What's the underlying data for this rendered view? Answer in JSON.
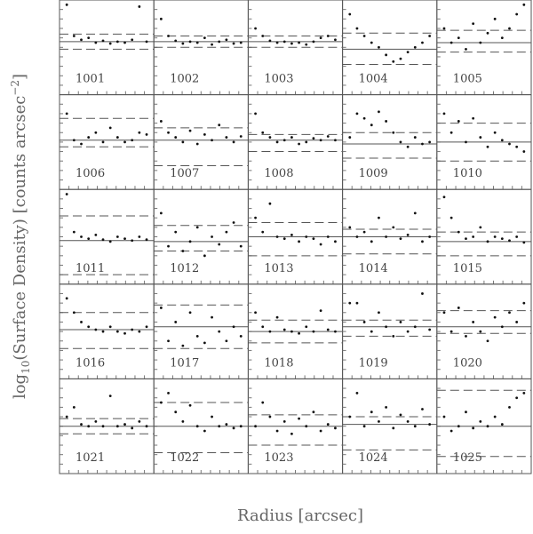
{
  "y_label": {
    "base": "log",
    "sub": "10",
    "text": "(Surface Density) [counts arcsec",
    "sup": "−2",
    "end": "]"
  },
  "x_label": "Radius [arcsec]",
  "chart_data": [
    {
      "type": "scatter",
      "label": "1001",
      "x": [
        1,
        2,
        3,
        4,
        5,
        6,
        7,
        8,
        9,
        10,
        11,
        12
      ],
      "y": [
        0.95,
        0.62,
        0.58,
        0.6,
        0.55,
        0.57,
        0.54,
        0.56,
        0.55,
        0.58,
        0.93,
        0.56
      ],
      "xlim": [
        0,
        13
      ],
      "ylim": [
        0,
        1
      ],
      "level": 0.56,
      "bounds": [
        0.64,
        0.48
      ]
    },
    {
      "type": "scatter",
      "label": "1002",
      "x": [
        1,
        2,
        3,
        4,
        5,
        6,
        7,
        8,
        9,
        10,
        11,
        12
      ],
      "y": [
        0.8,
        0.62,
        0.57,
        0.54,
        0.56,
        0.55,
        0.6,
        0.53,
        0.56,
        0.58,
        0.54,
        0.55
      ],
      "xlim": [
        0,
        13
      ],
      "ylim": [
        0,
        1
      ],
      "level": 0.56,
      "bounds": [
        0.62,
        0.5
      ]
    },
    {
      "type": "scatter",
      "label": "1003",
      "x": [
        1,
        2,
        3,
        4,
        5,
        6,
        7,
        8,
        9,
        10,
        11,
        12
      ],
      "y": [
        0.7,
        0.62,
        0.57,
        0.55,
        0.56,
        0.54,
        0.55,
        0.53,
        0.56,
        0.6,
        0.62,
        0.58
      ],
      "xlim": [
        0,
        13
      ],
      "ylim": [
        0,
        1
      ],
      "level": 0.56,
      "bounds": [
        0.62,
        0.5
      ]
    },
    {
      "type": "scatter",
      "label": "1004",
      "x": [
        1,
        2,
        3,
        4,
        5,
        6,
        7,
        8,
        9,
        10,
        11,
        12
      ],
      "y": [
        0.85,
        0.7,
        0.62,
        0.55,
        0.5,
        0.42,
        0.35,
        0.38,
        0.45,
        0.5,
        0.55,
        0.62
      ],
      "xlim": [
        0,
        13
      ],
      "ylim": [
        0,
        1
      ],
      "level": 0.48,
      "bounds": [
        0.65,
        0.32
      ]
    },
    {
      "type": "scatter",
      "label": "1005",
      "x": [
        1,
        2,
        3,
        4,
        5,
        6,
        7,
        8,
        9,
        10,
        11,
        12
      ],
      "y": [
        0.7,
        0.55,
        0.6,
        0.48,
        0.75,
        0.55,
        0.65,
        0.8,
        0.6,
        0.7,
        0.85,
        0.95
      ],
      "xlim": [
        0,
        13
      ],
      "ylim": [
        0,
        1
      ],
      "level": 0.55,
      "bounds": [
        0.68,
        0.45
      ]
    },
    {
      "type": "scatter",
      "label": "1006",
      "x": [
        1,
        2,
        3,
        4,
        5,
        6,
        7,
        8,
        9,
        10,
        11,
        12
      ],
      "y": [
        0.8,
        0.52,
        0.48,
        0.55,
        0.6,
        0.5,
        0.65,
        0.55,
        0.5,
        0.52,
        0.6,
        0.58
      ],
      "xlim": [
        0,
        13
      ],
      "ylim": [
        0,
        1
      ],
      "level": 0.52,
      "bounds": [
        0.75,
        0.45
      ]
    },
    {
      "type": "scatter",
      "label": "1007",
      "x": [
        1,
        2,
        3,
        4,
        5,
        6,
        7,
        8,
        9,
        10,
        11,
        12
      ],
      "y": [
        0.72,
        0.6,
        0.55,
        0.5,
        0.62,
        0.48,
        0.58,
        0.52,
        0.68,
        0.55,
        0.5,
        0.56
      ],
      "xlim": [
        0,
        13
      ],
      "ylim": [
        0,
        1
      ],
      "level": 0.52,
      "bounds": [
        0.65,
        0.25
      ]
    },
    {
      "type": "scatter",
      "label": "1008",
      "x": [
        1,
        2,
        3,
        4,
        5,
        6,
        7,
        8,
        9,
        10,
        11,
        12
      ],
      "y": [
        0.8,
        0.6,
        0.55,
        0.5,
        0.52,
        0.55,
        0.48,
        0.5,
        0.54,
        0.52,
        0.56,
        0.52
      ],
      "xlim": [
        0,
        13
      ],
      "ylim": [
        0,
        1
      ],
      "level": 0.52,
      "bounds": [
        0.58,
        0.4
      ]
    },
    {
      "type": "scatter",
      "label": "1009",
      "x": [
        1,
        2,
        3,
        4,
        5,
        6,
        7,
        8,
        9,
        10,
        11,
        12
      ],
      "y": [
        0.55,
        0.8,
        0.75,
        0.68,
        0.82,
        0.72,
        0.6,
        0.5,
        0.45,
        0.55,
        0.48,
        0.5
      ],
      "xlim": [
        0,
        13
      ],
      "ylim": [
        0,
        1
      ],
      "level": 0.48,
      "bounds": [
        0.6,
        0.33
      ]
    },
    {
      "type": "scatter",
      "label": "1010",
      "x": [
        1,
        2,
        3,
        4,
        5,
        6,
        7,
        8,
        9,
        10,
        11,
        12
      ],
      "y": [
        0.8,
        0.6,
        0.72,
        0.5,
        0.75,
        0.55,
        0.45,
        0.6,
        0.52,
        0.48,
        0.45,
        0.4
      ],
      "xlim": [
        0,
        13
      ],
      "ylim": [
        0,
        1
      ],
      "level": 0.5,
      "bounds": [
        0.7,
        0.3
      ]
    },
    {
      "type": "scatter",
      "label": "1011",
      "x": [
        1,
        2,
        3,
        4,
        5,
        6,
        7,
        8,
        9,
        10,
        11,
        12
      ],
      "y": [
        0.95,
        0.55,
        0.5,
        0.48,
        0.52,
        0.47,
        0.45,
        0.5,
        0.48,
        0.46,
        0.5,
        0.47
      ],
      "xlim": [
        0,
        13
      ],
      "ylim": [
        0,
        1
      ],
      "level": 0.46,
      "bounds": [
        0.72,
        0.1
      ]
    },
    {
      "type": "scatter",
      "label": "1012",
      "x": [
        1,
        2,
        3,
        4,
        5,
        6,
        7,
        8,
        9,
        10,
        11,
        12
      ],
      "y": [
        0.75,
        0.4,
        0.55,
        0.35,
        0.45,
        0.6,
        0.3,
        0.5,
        0.42,
        0.55,
        0.65,
        0.4
      ],
      "xlim": [
        0,
        13
      ],
      "ylim": [
        0,
        1
      ],
      "level": 0.45,
      "bounds": [
        0.62,
        0.35
      ]
    },
    {
      "type": "scatter",
      "label": "1013",
      "x": [
        1,
        2,
        3,
        4,
        5,
        6,
        7,
        8,
        9,
        10,
        11,
        12
      ],
      "y": [
        0.7,
        0.55,
        0.85,
        0.5,
        0.48,
        0.52,
        0.45,
        0.5,
        0.48,
        0.42,
        0.5,
        0.45
      ],
      "xlim": [
        0,
        13
      ],
      "ylim": [
        0,
        1
      ],
      "level": 0.5,
      "bounds": [
        0.65,
        0.3
      ]
    },
    {
      "type": "scatter",
      "label": "1014",
      "x": [
        1,
        2,
        3,
        4,
        5,
        6,
        7,
        8,
        9,
        10,
        11,
        12
      ],
      "y": [
        0.6,
        0.5,
        0.55,
        0.45,
        0.7,
        0.5,
        0.6,
        0.48,
        0.52,
        0.75,
        0.45,
        0.5
      ],
      "xlim": [
        0,
        13
      ],
      "ylim": [
        0,
        1
      ],
      "level": 0.5,
      "bounds": [
        0.58,
        0.32
      ]
    },
    {
      "type": "scatter",
      "label": "1015",
      "x": [
        1,
        2,
        3,
        4,
        5,
        6,
        7,
        8,
        9,
        10,
        11,
        12
      ],
      "y": [
        0.92,
        0.7,
        0.55,
        0.48,
        0.5,
        0.6,
        0.45,
        0.5,
        0.48,
        0.46,
        0.5,
        0.44
      ],
      "xlim": [
        0,
        13
      ],
      "ylim": [
        0,
        1
      ],
      "level": 0.45,
      "bounds": [
        0.55,
        0.3
      ]
    },
    {
      "type": "scatter",
      "label": "1016",
      "x": [
        1,
        2,
        3,
        4,
        5,
        6,
        7,
        8,
        9,
        10,
        11,
        12
      ],
      "y": [
        0.85,
        0.7,
        0.6,
        0.55,
        0.52,
        0.5,
        0.55,
        0.5,
        0.48,
        0.52,
        0.5,
        0.55
      ],
      "xlim": [
        0,
        13
      ],
      "ylim": [
        0,
        1
      ],
      "level": 0.52,
      "bounds": [
        0.7,
        0.32
      ]
    },
    {
      "type": "scatter",
      "label": "1017",
      "x": [
        1,
        2,
        3,
        4,
        5,
        6,
        7,
        8,
        9,
        10,
        11,
        12
      ],
      "y": [
        0.75,
        0.4,
        0.6,
        0.35,
        0.7,
        0.45,
        0.38,
        0.65,
        0.5,
        0.4,
        0.55,
        0.45
      ],
      "xlim": [
        0,
        13
      ],
      "ylim": [
        0,
        1
      ],
      "level": 0.55,
      "bounds": [
        0.78,
        0.32
      ]
    },
    {
      "type": "scatter",
      "label": "1018",
      "x": [
        1,
        2,
        3,
        4,
        5,
        6,
        7,
        8,
        9,
        10,
        11,
        12
      ],
      "y": [
        0.7,
        0.55,
        0.5,
        0.65,
        0.52,
        0.5,
        0.48,
        0.55,
        0.5,
        0.72,
        0.52,
        0.5
      ],
      "xlim": [
        0,
        13
      ],
      "ylim": [
        0,
        1
      ],
      "level": 0.5,
      "bounds": [
        0.62,
        0.38
      ]
    },
    {
      "type": "scatter",
      "label": "1019",
      "x": [
        1,
        2,
        3,
        4,
        5,
        6,
        7,
        8,
        9,
        10,
        11,
        12
      ],
      "y": [
        0.8,
        0.8,
        0.6,
        0.5,
        0.7,
        0.55,
        0.45,
        0.6,
        0.5,
        0.55,
        0.9,
        0.52
      ],
      "xlim": [
        0,
        13
      ],
      "ylim": [
        0,
        1
      ],
      "level": 0.55,
      "bounds": [
        0.62,
        0.45
      ]
    },
    {
      "type": "scatter",
      "label": "1020",
      "x": [
        1,
        2,
        3,
        4,
        5,
        6,
        7,
        8,
        9,
        10,
        11,
        12
      ],
      "y": [
        0.7,
        0.5,
        0.75,
        0.45,
        0.6,
        0.5,
        0.4,
        0.65,
        0.55,
        0.7,
        0.6,
        0.8
      ],
      "xlim": [
        0,
        13
      ],
      "ylim": [
        0,
        1
      ],
      "level": 0.55,
      "bounds": [
        0.72,
        0.48
      ]
    },
    {
      "type": "scatter",
      "label": "1021",
      "x": [
        1,
        2,
        3,
        4,
        5,
        6,
        7,
        8,
        9,
        10,
        11,
        12
      ],
      "y": [
        0.6,
        0.7,
        0.52,
        0.5,
        0.55,
        0.5,
        0.82,
        0.5,
        0.52,
        0.48,
        0.55,
        0.5
      ],
      "xlim": [
        0,
        13
      ],
      "ylim": [
        0,
        1
      ],
      "level": 0.5,
      "bounds": [
        0.58,
        0.42
      ]
    },
    {
      "type": "scatter",
      "label": "1022",
      "x": [
        1,
        2,
        3,
        4,
        5,
        6,
        7,
        8,
        9,
        10,
        11,
        12
      ],
      "y": [
        0.75,
        0.85,
        0.65,
        0.55,
        0.72,
        0.5,
        0.45,
        0.6,
        0.5,
        0.52,
        0.48,
        0.5
      ],
      "xlim": [
        0,
        13
      ],
      "ylim": [
        0,
        1
      ],
      "level": 0.5,
      "bounds": [
        0.75,
        0.22
      ]
    },
    {
      "type": "scatter",
      "label": "1023",
      "x": [
        1,
        2,
        3,
        4,
        5,
        6,
        7,
        8,
        9,
        10,
        11,
        12
      ],
      "y": [
        0.5,
        0.75,
        0.6,
        0.45,
        0.55,
        0.42,
        0.58,
        0.5,
        0.65,
        0.45,
        0.52,
        0.48
      ],
      "xlim": [
        0,
        13
      ],
      "ylim": [
        0,
        1
      ],
      "level": 0.5,
      "bounds": [
        0.62,
        0.3
      ]
    },
    {
      "type": "scatter",
      "label": "1024",
      "x": [
        1,
        2,
        3,
        4,
        5,
        6,
        7,
        8,
        9,
        10,
        11,
        12
      ],
      "y": [
        0.6,
        0.85,
        0.5,
        0.65,
        0.55,
        0.7,
        0.48,
        0.62,
        0.55,
        0.5,
        0.68,
        0.52
      ],
      "xlim": [
        0,
        13
      ],
      "ylim": [
        0,
        1
      ],
      "level": 0.52,
      "bounds": [
        0.6,
        0.25
      ]
    },
    {
      "type": "scatter",
      "label": "1025",
      "x": [
        1,
        2,
        3,
        4,
        5,
        6,
        7,
        8,
        9,
        10,
        11,
        12
      ],
      "y": [
        0.6,
        0.45,
        0.5,
        0.65,
        0.48,
        0.55,
        0.5,
        0.6,
        0.52,
        0.7,
        0.8,
        0.85
      ],
      "xlim": [
        0,
        13
      ],
      "ylim": [
        0,
        1
      ],
      "level": 0.5,
      "bounds": [
        0.88,
        0.18
      ]
    }
  ]
}
